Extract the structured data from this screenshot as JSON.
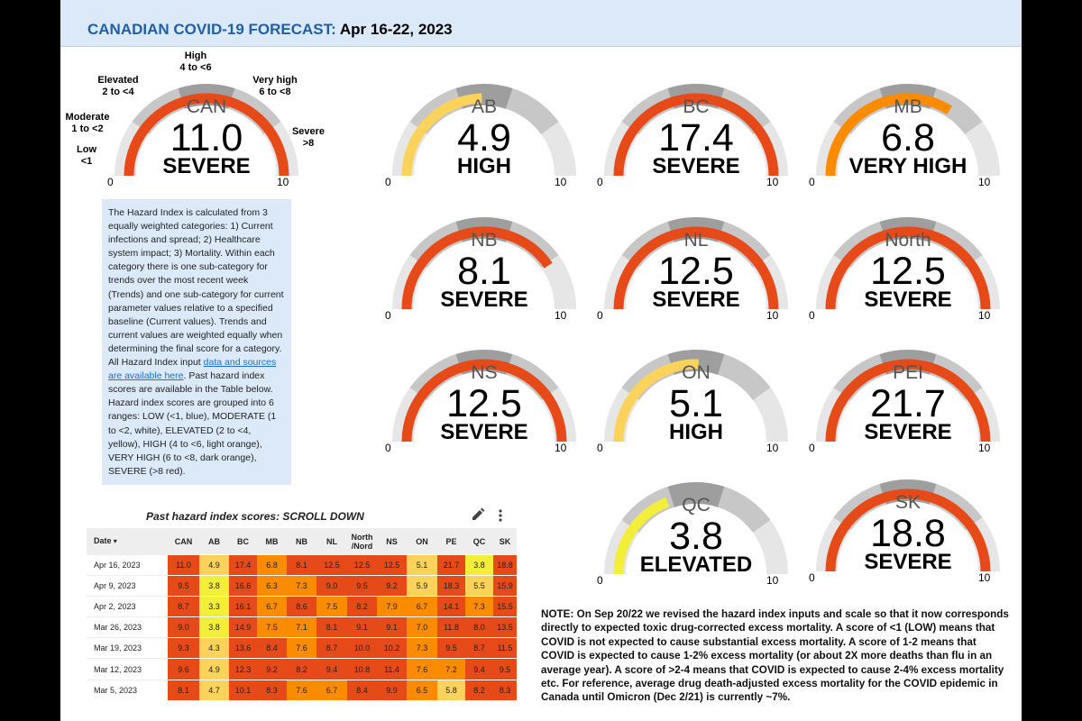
{
  "header": {
    "title_main": "CANADIAN COVID-19 FORECAST:",
    "title_date": "Apr 16-22, 2023"
  },
  "colors": {
    "low": "#8ab8e6",
    "moderate": "#ffffff",
    "elevated": "#f2ee3a",
    "high": "#fcd35a",
    "very_high": "#fb8c00",
    "severe": "#e64a19",
    "gauge_bg1": "#e6e6e6",
    "gauge_bg2": "#c7c7c7",
    "gauge_bg3": "#9e9e9e"
  },
  "can_gauge": {
    "name": "CAN",
    "value": "11.0",
    "level": "SEVERE",
    "min": "0",
    "max": "10",
    "range_labels": {
      "low_name": "Low",
      "low_range": "<1",
      "moderate_name": "Moderate",
      "moderate_range": "1 to <2",
      "elevated_name": "Elevated",
      "elevated_range": "2 to <4",
      "high_name": "High",
      "high_range": "4 to <6",
      "very_high_name": "Very high",
      "very_high_range": "6 to <8",
      "severe_name": "Severe",
      "severe_range": ">8"
    }
  },
  "gauges": [
    {
      "name": "AB",
      "value": "4.9",
      "level": "HIGH",
      "min": "0",
      "max": "10"
    },
    {
      "name": "BC",
      "value": "17.4",
      "level": "SEVERE",
      "min": "0",
      "max": "10"
    },
    {
      "name": "MB",
      "value": "6.8",
      "level": "VERY HIGH",
      "min": "0",
      "max": "10"
    },
    {
      "name": "NB",
      "value": "8.1",
      "level": "SEVERE",
      "min": "0",
      "max": "10"
    },
    {
      "name": "NL",
      "value": "12.5",
      "level": "SEVERE",
      "min": "0",
      "max": "10"
    },
    {
      "name": "North",
      "value": "12.5",
      "level": "SEVERE",
      "min": "0",
      "max": "10"
    },
    {
      "name": "NS",
      "value": "12.5",
      "level": "SEVERE",
      "min": "0",
      "max": "10"
    },
    {
      "name": "ON",
      "value": "5.1",
      "level": "HIGH",
      "min": "0",
      "max": "10"
    },
    {
      "name": "PEI",
      "value": "21.7",
      "level": "SEVERE",
      "min": "0",
      "max": "10"
    },
    {
      "name": "QC",
      "value": "3.8",
      "level": "ELEVATED",
      "min": "0",
      "max": "10"
    },
    {
      "name": "SK",
      "value": "18.8",
      "level": "SEVERE",
      "min": "0",
      "max": "10"
    }
  ],
  "info": {
    "text_before": "The Hazard Index is calculated from 3 equally weighted categories: 1) Current infections and spread; 2) Healthcare system impact; 3) Mortality. Within each category there is one sub-category for trends over the most recent week (Trends) and one sub-category for current parameter values relative to a specified baseline (Current values). Trends and current values are weighted equally when determining the final score for a category. All Hazard Index input ",
    "link_text": "data and sources are available here",
    "text_after": ". Past hazard index scores are available in the Table below. Hazard index scores are grouped into 6 ranges: LOW (<1, blue), MODERATE (1 to <2, white), ELEVATED (2 to <4, yellow), HIGH (4 to <6, light orange), VERY HIGH (6 to <8, dark orange), SEVERE (>8 red)."
  },
  "table": {
    "title": "Past hazard index scores: SCROLL DOWN",
    "edit_icon": "pencil-icon",
    "menu_icon": "more-vert-icon",
    "date_header": "Date",
    "sort_icon": "sort-down-icon",
    "headers": [
      "CAN",
      "AB",
      "BC",
      "MB",
      "NB",
      "NL",
      "North\n/Nord",
      "NS",
      "ON",
      "PE",
      "QC",
      "SK"
    ],
    "rows": [
      {
        "date": "Apr 16, 2023",
        "values": [
          "11.0",
          "4.9",
          "17.4",
          "6.8",
          "8.1",
          "12.5",
          "12.5",
          "12.5",
          "5.1",
          "21.7",
          "3.8",
          "18.8"
        ]
      },
      {
        "date": "Apr 9, 2023",
        "values": [
          "9.5",
          "3.8",
          "16.6",
          "6.3",
          "7.3",
          "9.0",
          "9.5",
          "9.2",
          "5.9",
          "18.3",
          "5.5",
          "15.9"
        ]
      },
      {
        "date": "Apr 2, 2023",
        "values": [
          "8.7",
          "3.3",
          "16.1",
          "6.7",
          "8.6",
          "7.5",
          "8.2",
          "7.9",
          "6.7",
          "14.1",
          "7.3",
          "15.5"
        ]
      },
      {
        "date": "Mar 26, 2023",
        "values": [
          "9.0",
          "3.8",
          "14.9",
          "7.5",
          "7.1",
          "8.1",
          "9.1",
          "9.1",
          "7.0",
          "11.8",
          "8.0",
          "13.5"
        ]
      },
      {
        "date": "Mar 19, 2023",
        "values": [
          "9.3",
          "4.3",
          "13.6",
          "8.4",
          "7.6",
          "8.7",
          "10.0",
          "10.2",
          "7.3",
          "9.5",
          "8.7",
          "11.5"
        ]
      },
      {
        "date": "Mar 12, 2023",
        "values": [
          "9.6",
          "4.9",
          "12.3",
          "9.2",
          "8.2",
          "9.4",
          "10.8",
          "11.4",
          "7.6",
          "7.2",
          "9.4",
          "9.5"
        ]
      },
      {
        "date": "Mar 5, 2023",
        "values": [
          "8.1",
          "4.7",
          "10.1",
          "8.3",
          "7.6",
          "6.7",
          "8.4",
          "9.9",
          "6.5",
          "5.8",
          "8.2",
          "8.3"
        ]
      }
    ]
  },
  "note": "NOTE: On Sep 20/22 we revised the hazard index inputs and scale so that it now corresponds directly to expected toxic drug-corrected excess mortality. A score of <1 (LOW) means that COVID is not expected to cause substantial excess mortality. A score of 1-2 means that COVID is expected to cause 1-2% excess mortality (or about 2X more deaths than flu in an average year). A score of >2-4 means that COVID is expected to cause 2-4% excess mortality etc. For reference, average drug death-adjusted excess mortality for the COVID epidemic in Canada until Omicron (Dec 2/21) is currently ~7%."
}
